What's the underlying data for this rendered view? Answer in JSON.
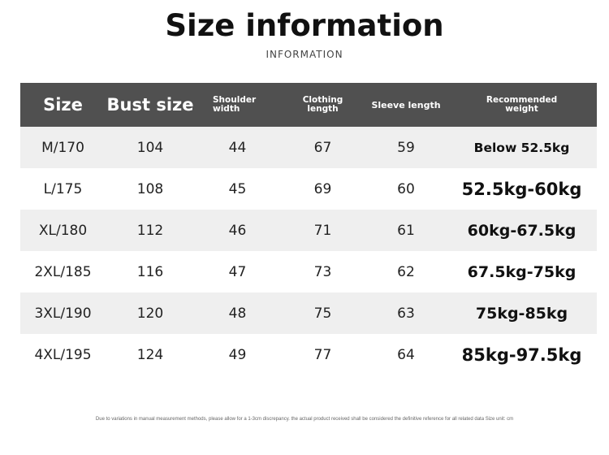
{
  "title": "Size information",
  "subtitle": "INFORMATION",
  "headers": {
    "size": "Size",
    "bust": "Bust size",
    "shoulder_1": "Shoulder",
    "shoulder_2": "width",
    "clothing_1": "Clothing",
    "clothing_2": "length",
    "sleeve": "Sleeve length",
    "weight_1": "Recommended",
    "weight_2": "weight"
  },
  "rows": [
    [
      "M/170",
      "104",
      "44",
      "67",
      "59",
      "Below 52.5kg"
    ],
    [
      "L/175",
      "108",
      "45",
      "69",
      "60",
      "52.5kg-60kg"
    ],
    [
      "XL/180",
      "112",
      "46",
      "71",
      "61",
      "60kg-67.5kg"
    ],
    [
      "2XL/185",
      "116",
      "47",
      "73",
      "62",
      "67.5kg-75kg"
    ],
    [
      "3XL/190",
      "120",
      "48",
      "75",
      "63",
      "75kg-85kg"
    ],
    [
      "4XL/195",
      "124",
      "49",
      "77",
      "64",
      "85kg-97.5kg"
    ]
  ],
  "note": "Due to variations in manual measurement methods, please allow for a 1-3cm discrepancy. the actual product received shall be considered the definitive reference for all related data Size unit: cm",
  "colors": {
    "header_bg": "#505050",
    "row_alt": "#efefef"
  }
}
